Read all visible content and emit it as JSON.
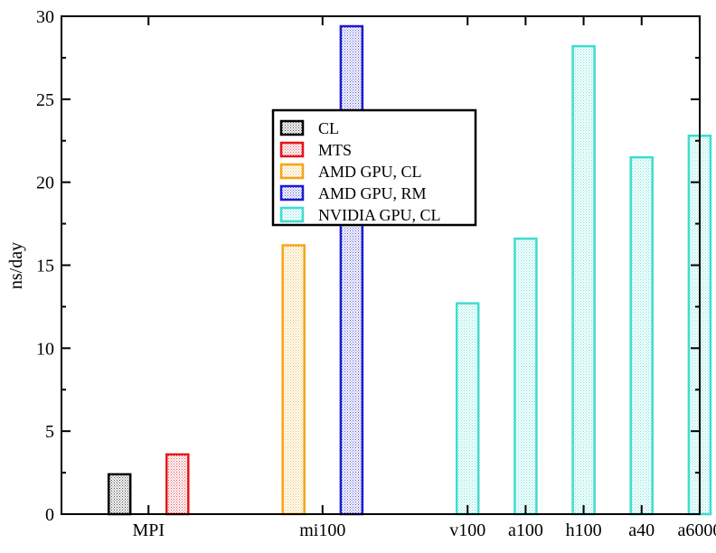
{
  "chart_data": {
    "type": "bar",
    "ylabel": "ns/day",
    "ylim": [
      0,
      30
    ],
    "y_ticks": [
      0,
      5,
      10,
      15,
      20,
      25,
      30
    ],
    "grid": false,
    "legend_position": "upper-center",
    "categories": [
      "MPI",
      "mi100",
      "v100",
      "a100",
      "h100",
      "a40",
      "a6000"
    ],
    "series": [
      {
        "name": "CL",
        "color": "#000000",
        "fill": "#d9d9d9",
        "bars": [
          {
            "category": "MPI",
            "value": 2.4
          }
        ]
      },
      {
        "name": "MTS",
        "color": "#e8141b",
        "fill": "#f6d3d3",
        "bars": [
          {
            "category": "MPI",
            "value": 3.6
          }
        ]
      },
      {
        "name": "AMD GPU, CL",
        "color": "#f5a515",
        "fill": "#fdecd0",
        "bars": [
          {
            "category": "mi100",
            "value": 16.2
          }
        ]
      },
      {
        "name": "AMD GPU, RM",
        "color": "#1a1ad4",
        "fill": "#d6d6f5",
        "bars": [
          {
            "category": "mi100",
            "value": 29.4
          }
        ]
      },
      {
        "name": "NVIDIA GPU, CL",
        "color": "#3fdcd0",
        "fill": "#d6f6f3",
        "bars": [
          {
            "category": "v100",
            "value": 12.7
          },
          {
            "category": "a100",
            "value": 16.6
          },
          {
            "category": "h100",
            "value": 28.2
          },
          {
            "category": "a40",
            "value": 21.5
          },
          {
            "category": "a6000",
            "value": 22.8
          }
        ]
      }
    ]
  }
}
